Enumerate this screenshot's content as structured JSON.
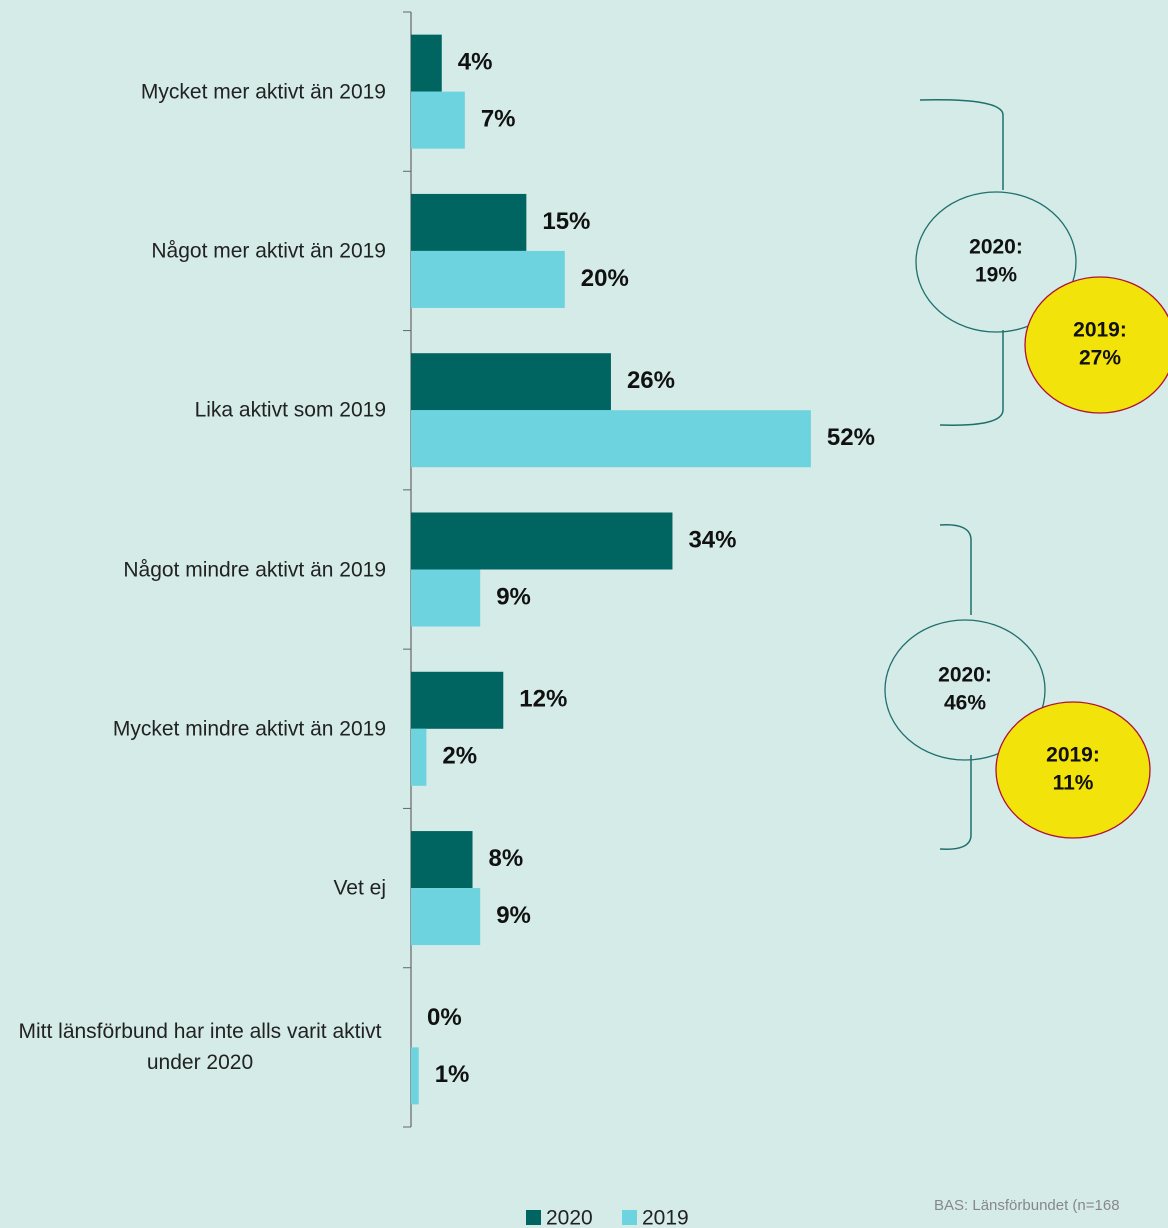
{
  "chart_data": {
    "type": "bar",
    "orientation": "horizontal",
    "categories": [
      "Mycket mer aktivt än 2019",
      "Något mer aktivt än 2019",
      "Lika aktivt som 2019",
      "Något mindre aktivt än 2019",
      "Mycket mindre aktivt än 2019",
      "Vet ej",
      "Mitt länsförbund har inte alls varit aktivt under 2020"
    ],
    "series": [
      {
        "name": "2020",
        "color": "#006461",
        "values": [
          4,
          15,
          26,
          34,
          12,
          8,
          0
        ],
        "value_labels": [
          "4%",
          "15%",
          "26%",
          "34%",
          "12%",
          "8%",
          "0%"
        ]
      },
      {
        "name": "2019",
        "color": "#6dd3de",
        "values": [
          7,
          20,
          52,
          9,
          2,
          9,
          1
        ],
        "value_labels": [
          "7%",
          "20%",
          "52%",
          "9%",
          "2%",
          "9%",
          "1%"
        ]
      }
    ],
    "annotations": [
      {
        "lines": [
          "2020:",
          "19%"
        ]
      },
      {
        "lines": [
          "2019:",
          "27%"
        ]
      },
      {
        "lines": [
          "2020:",
          "46%"
        ]
      },
      {
        "lines": [
          "2019:",
          "11%"
        ]
      }
    ],
    "source": "BAS: Länsförbundet (n=168"
  }
}
